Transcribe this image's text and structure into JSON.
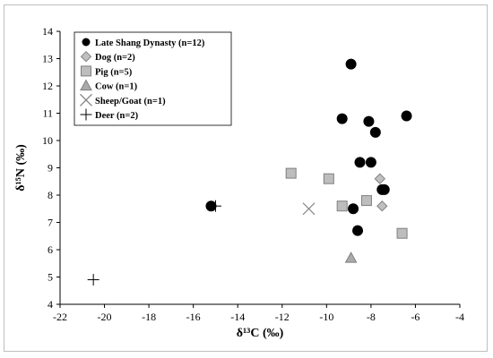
{
  "chart_data": {
    "type": "scatter",
    "xlabel": "δ¹³C (‰)",
    "ylabel": "δ¹⁵N (‰)",
    "xlim": [
      -22,
      -4
    ],
    "ylim": [
      4,
      14
    ],
    "x_ticks": [
      -22,
      -20,
      -18,
      -16,
      -14,
      -12,
      -10,
      -8,
      -6,
      -4
    ],
    "y_ticks": [
      4,
      5,
      6,
      7,
      8,
      9,
      10,
      11,
      12,
      13,
      14
    ],
    "grid": false,
    "legend_position": "top-left",
    "series": [
      {
        "name": "Late Shang Dynasty (n=12)",
        "marker": "filled-circle",
        "color": "#000000",
        "points": [
          {
            "x": -15.2,
            "y": 7.6
          },
          {
            "x": -8.9,
            "y": 12.8
          },
          {
            "x": -9.3,
            "y": 10.8
          },
          {
            "x": -8.1,
            "y": 10.7
          },
          {
            "x": -6.4,
            "y": 10.9
          },
          {
            "x": -7.8,
            "y": 10.3
          },
          {
            "x": -8.5,
            "y": 9.2
          },
          {
            "x": -8.0,
            "y": 9.2
          },
          {
            "x": -7.5,
            "y": 8.2
          },
          {
            "x": -8.8,
            "y": 7.5
          },
          {
            "x": -8.6,
            "y": 6.7
          },
          {
            "x": -7.4,
            "y": 8.2
          }
        ]
      },
      {
        "name": "Dog (n=2)",
        "marker": "diamond",
        "color": "#c0c0c0",
        "points": [
          {
            "x": -7.6,
            "y": 8.6
          },
          {
            "x": -7.5,
            "y": 7.6
          }
        ]
      },
      {
        "name": "Pig (n=5)",
        "marker": "square",
        "color": "#bdbdbd",
        "points": [
          {
            "x": -11.6,
            "y": 8.8
          },
          {
            "x": -9.9,
            "y": 8.6
          },
          {
            "x": -9.3,
            "y": 7.6
          },
          {
            "x": -8.2,
            "y": 7.8
          },
          {
            "x": -6.6,
            "y": 6.6
          }
        ]
      },
      {
        "name": "Cow (n=1)",
        "marker": "triangle",
        "color": "#aaaaaa",
        "points": [
          {
            "x": -8.9,
            "y": 5.7
          }
        ]
      },
      {
        "name": "Sheep/Goat (n=1)",
        "marker": "x",
        "color": "#808080",
        "points": [
          {
            "x": -10.8,
            "y": 7.5
          }
        ]
      },
      {
        "name": "Deer (n=2)",
        "marker": "plus",
        "color": "#000000",
        "points": [
          {
            "x": -20.5,
            "y": 4.9
          },
          {
            "x": -15.0,
            "y": 7.6
          }
        ]
      }
    ]
  }
}
